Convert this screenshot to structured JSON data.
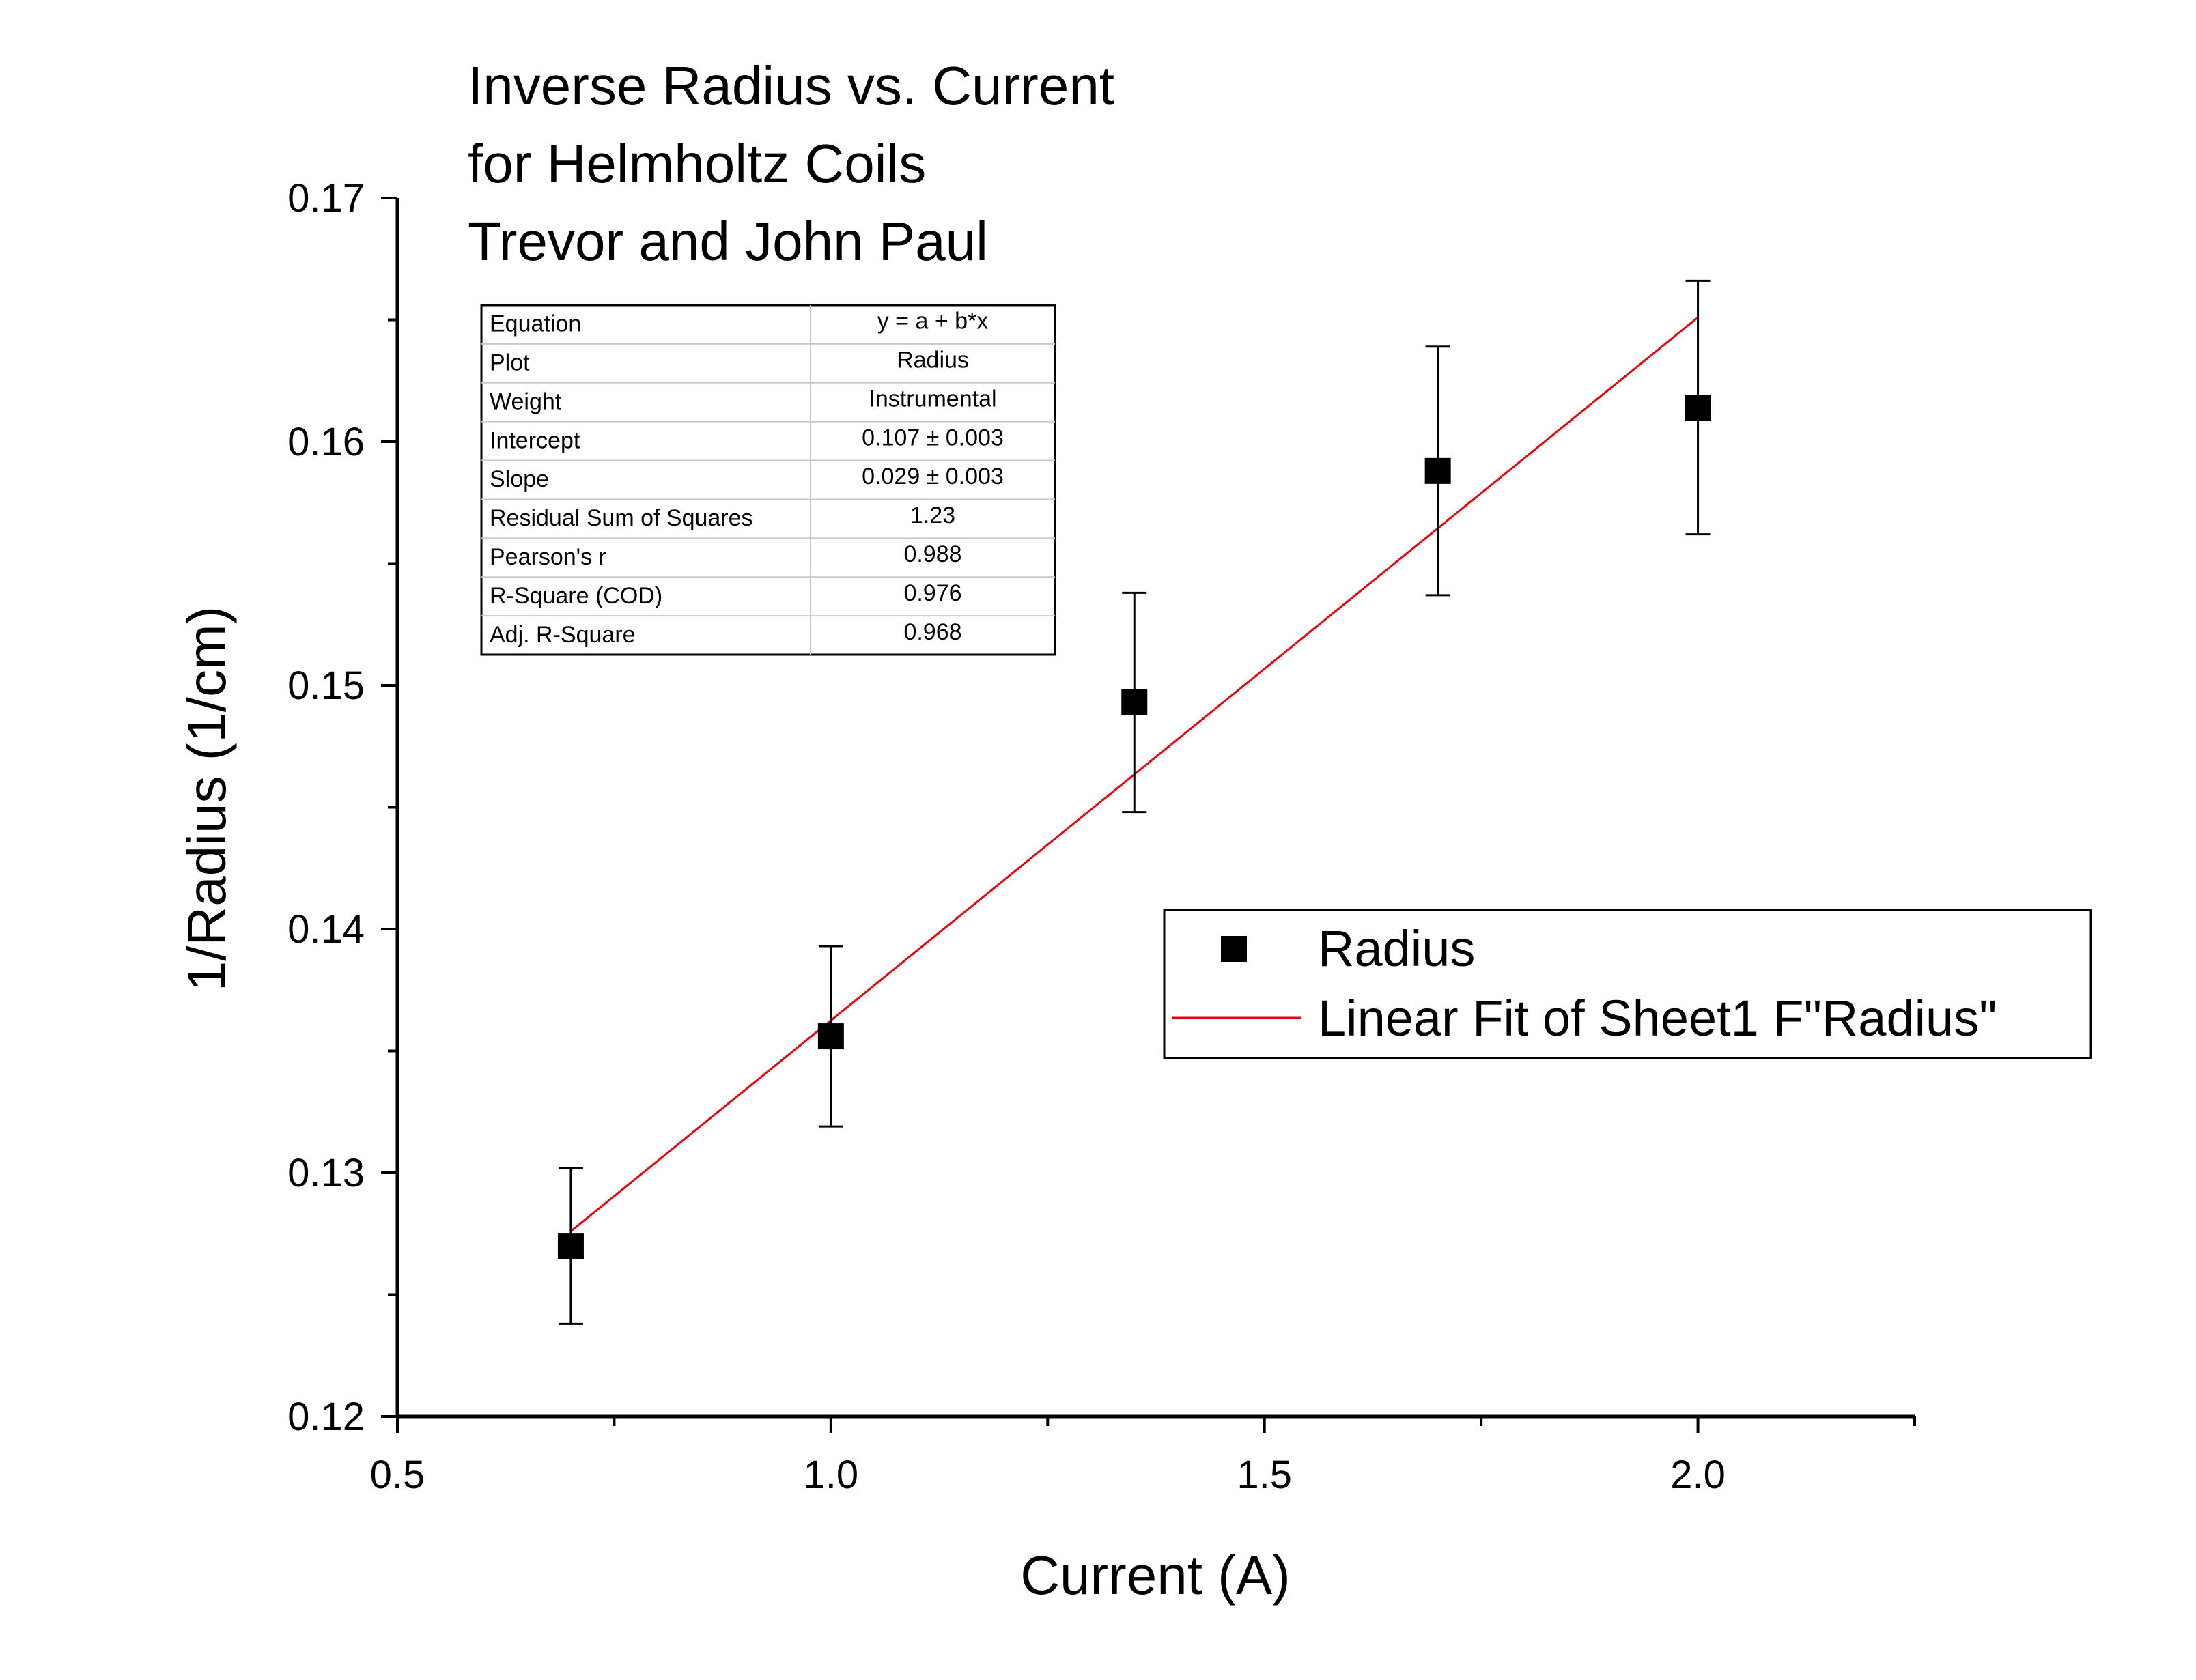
{
  "chart_data": {
    "type": "scatter",
    "title": [
      "Inverse Radius vs. Current",
      "for Helmholtz Coils",
      "Trevor and John Paul"
    ],
    "xlabel": "Current (A)",
    "ylabel": "1/Radius (1/cm)",
    "xlim": [
      0.5,
      2.25
    ],
    "ylim": [
      0.12,
      0.17
    ],
    "x_ticks": [
      "0.5",
      "1.0",
      "1.5",
      "2.0"
    ],
    "y_ticks": [
      "0.12",
      "0.13",
      "0.14",
      "0.15",
      "0.16",
      "0.17"
    ],
    "grid": false,
    "series": [
      {
        "name": "Radius",
        "style": "square-markers-with-error-bars",
        "color": "#000000",
        "points": [
          {
            "x": 0.7,
            "y": 0.127,
            "err": 0.0032
          },
          {
            "x": 1.0,
            "y": 0.1356,
            "err": 0.0037
          },
          {
            "x": 1.35,
            "y": 0.1493,
            "err": 0.0045
          },
          {
            "x": 1.7,
            "y": 0.1588,
            "err": 0.0051
          },
          {
            "x": 2.0,
            "y": 0.1614,
            "err": 0.0052
          }
        ]
      },
      {
        "name": "Linear Fit of Sheet1 F\"Radius\"",
        "style": "line",
        "color": "#e8000b",
        "points": [
          {
            "x": 0.7,
            "y": 0.1276
          },
          {
            "x": 2.0,
            "y": 0.1651
          }
        ]
      }
    ],
    "legend": {
      "placement": "center-right",
      "entries": [
        "Radius",
        "Linear Fit of Sheet1 F\"Radius\""
      ]
    },
    "fit_table": {
      "placement": "top-left",
      "rows": [
        [
          "Equation",
          "y = a + b*x"
        ],
        [
          "Plot",
          "Radius"
        ],
        [
          "Weight",
          "Instrumental"
        ],
        [
          "Intercept",
          "0.107 ± 0.003"
        ],
        [
          "Slope",
          "0.029 ± 0.003"
        ],
        [
          "Residual Sum of Squares",
          "1.23"
        ],
        [
          "Pearson's r",
          "0.988"
        ],
        [
          "R-Square (COD)",
          "0.976"
        ],
        [
          "Adj. R-Square",
          "0.968"
        ]
      ]
    }
  }
}
